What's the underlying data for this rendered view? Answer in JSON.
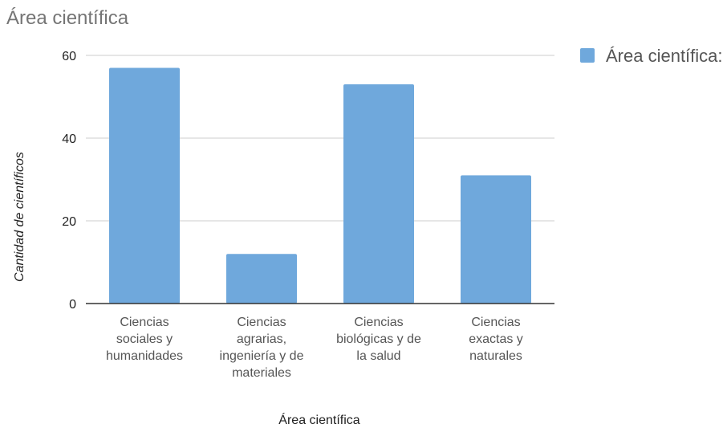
{
  "chart_data": {
    "type": "bar",
    "title": "Área científica",
    "xlabel": "Área científica",
    "ylabel": "Cantidad de científicos",
    "categories": [
      [
        "Ciencias",
        "sociales y",
        "humanidades"
      ],
      [
        "Ciencias",
        "agrarias,",
        "ingeniería y de",
        "materiales"
      ],
      [
        "Ciencias",
        "biológicas y de",
        "la salud"
      ],
      [
        "Ciencias",
        "exactas y",
        "naturales"
      ]
    ],
    "series": [
      {
        "name": "Área científica:",
        "color": "#6fa8dc",
        "values": [
          57,
          12,
          53,
          31
        ]
      }
    ],
    "ylim": [
      0,
      60
    ],
    "yticks": [
      "0",
      "20",
      "40",
      "60"
    ],
    "grid": true,
    "legend_position": "top-right"
  }
}
